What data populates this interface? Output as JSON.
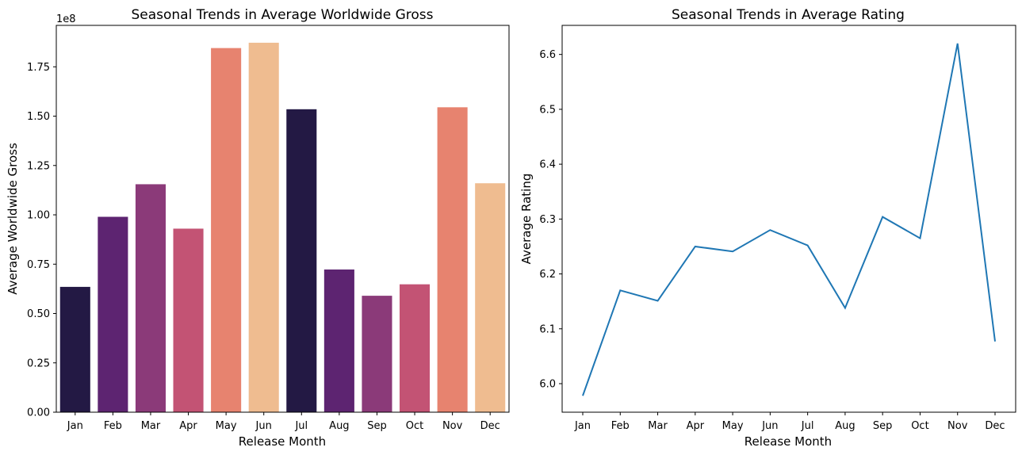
{
  "chart_data": [
    {
      "type": "bar",
      "title": "Seasonal Trends in Average Worldwide Gross",
      "xlabel": "Release Month",
      "ylabel": "Average Worldwide Gross",
      "y_offset_label": "1e8",
      "categories": [
        "Jan",
        "Feb",
        "Mar",
        "Apr",
        "May",
        "Jun",
        "Jul",
        "Aug",
        "Sep",
        "Oct",
        "Nov",
        "Dec"
      ],
      "values": [
        0.635,
        0.99,
        1.155,
        0.93,
        1.845,
        1.872,
        1.535,
        0.723,
        0.59,
        0.648,
        1.545,
        1.16
      ],
      "ylim": [
        0,
        1.96
      ],
      "yticks": [
        0.0,
        0.25,
        0.5,
        0.75,
        1.0,
        1.25,
        1.5,
        1.75
      ],
      "ytick_labels": [
        "0.00",
        "0.25",
        "0.50",
        "0.75",
        "1.00",
        "1.25",
        "1.50",
        "1.75"
      ],
      "colors": [
        "#231944",
        "#5d2471",
        "#8b3a79",
        "#c35374",
        "#e7836f",
        "#efbc90",
        "#231944",
        "#5d2471",
        "#8b3a79",
        "#c35374",
        "#e7836f",
        "#efbc90"
      ],
      "grid": false
    },
    {
      "type": "line",
      "title": "Seasonal Trends in Average Rating",
      "xlabel": "Release Month",
      "ylabel": "Average Rating",
      "categories": [
        "Jan",
        "Feb",
        "Mar",
        "Apr",
        "May",
        "Jun",
        "Jul",
        "Aug",
        "Sep",
        "Oct",
        "Nov",
        "Dec"
      ],
      "values": [
        5.978,
        6.17,
        6.151,
        6.25,
        6.241,
        6.28,
        6.252,
        6.138,
        6.304,
        6.265,
        6.62,
        6.077
      ],
      "ylim": [
        5.948,
        6.653
      ],
      "yticks": [
        6.0,
        6.1,
        6.2,
        6.3,
        6.4,
        6.5,
        6.6
      ],
      "ytick_labels": [
        "6.0",
        "6.1",
        "6.2",
        "6.3",
        "6.4",
        "6.5",
        "6.6"
      ],
      "line_color": "#1f77b4",
      "grid": false
    }
  ]
}
